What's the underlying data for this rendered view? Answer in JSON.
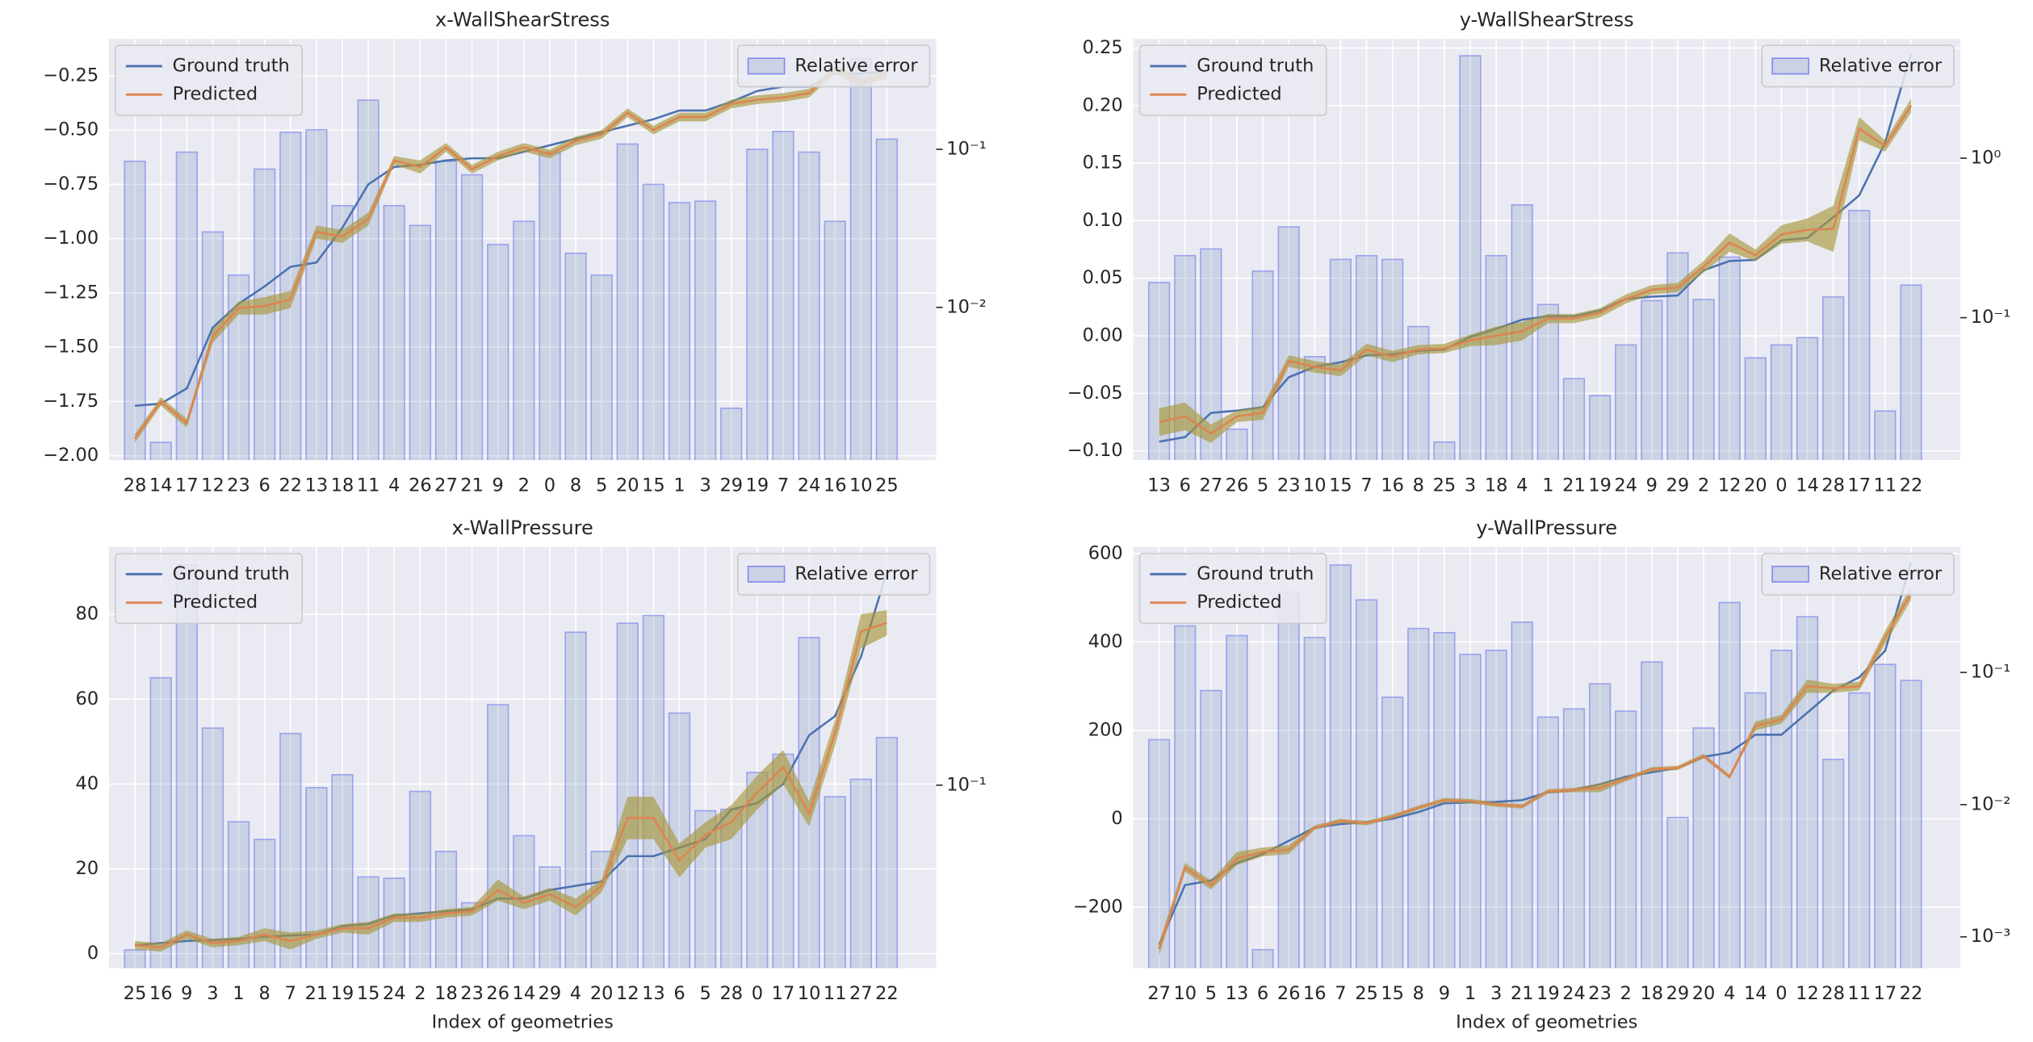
{
  "chart_data": [
    {
      "type": "combo",
      "title": "x-WallShearStress",
      "categories": [
        "28",
        "14",
        "17",
        "12",
        "23",
        "6",
        "22",
        "13",
        "18",
        "11",
        "4",
        "26",
        "27",
        "21",
        "9",
        "2",
        "0",
        "8",
        "5",
        "20",
        "15",
        "1",
        "3",
        "29",
        "19",
        "7",
        "24",
        "16",
        "10",
        "25"
      ],
      "series": [
        {
          "name": "Ground truth",
          "color": "#4c72b0",
          "values": [
            -1.77,
            -1.76,
            -1.69,
            -1.41,
            -1.3,
            -1.22,
            -1.13,
            -1.11,
            -0.95,
            -0.75,
            -0.67,
            -0.66,
            -0.64,
            -0.63,
            -0.63,
            -0.6,
            -0.57,
            -0.54,
            -0.51,
            -0.48,
            -0.45,
            -0.41,
            -0.41,
            -0.37,
            -0.32,
            -0.3,
            -0.3,
            -0.24,
            -0.24,
            -0.23
          ]
        },
        {
          "name": "Predicted",
          "color": "#dd8452",
          "spread_color": "#a8983a",
          "values": [
            -1.92,
            -1.75,
            -1.85,
            -1.45,
            -1.32,
            -1.31,
            -1.28,
            -0.97,
            -0.99,
            -0.91,
            -0.64,
            -0.67,
            -0.58,
            -0.68,
            -0.62,
            -0.58,
            -0.61,
            -0.55,
            -0.52,
            -0.42,
            -0.5,
            -0.44,
            -0.44,
            -0.38,
            -0.36,
            -0.35,
            -0.33,
            -0.22,
            -0.28,
            -0.24
          ],
          "spread": [
            0.02,
            0.02,
            0.02,
            0.03,
            0.03,
            0.04,
            0.04,
            0.03,
            0.03,
            0.03,
            0.02,
            0.03,
            0.02,
            0.02,
            0.02,
            0.02,
            0.02,
            0.02,
            0.02,
            0.02,
            0.02,
            0.02,
            0.02,
            0.02,
            0.02,
            0.02,
            0.02,
            0.02,
            0.02,
            0.02
          ]
        },
        {
          "name": "Relative error",
          "type": "bar",
          "axis": "y2",
          "color": "#4c72b0",
          "edge_color": "#7f88ee",
          "values": [
            0.084,
            0.0014,
            0.096,
            0.03,
            0.016,
            0.075,
            0.128,
            0.133,
            0.044,
            0.205,
            0.044,
            0.033,
            0.084,
            0.069,
            0.025,
            0.035,
            0.096,
            0.022,
            0.016,
            0.108,
            0.06,
            0.046,
            0.047,
            0.0023,
            0.1,
            0.13,
            0.096,
            0.035,
            0.375,
            0.116
          ]
        }
      ],
      "ylim": [
        -2.02,
        -0.08
      ],
      "yticks": [
        {
          "value": -2,
          "label": "−2.00"
        },
        {
          "value": -1.75,
          "label": "−1.75"
        },
        {
          "value": -1.5,
          "label": "−1.50"
        },
        {
          "value": -1.25,
          "label": "−1.25"
        },
        {
          "value": -1,
          "label": "−1.00"
        },
        {
          "value": -0.75,
          "label": "−0.75"
        },
        {
          "value": -0.5,
          "label": "−0.50"
        },
        {
          "value": -0.25,
          "label": "−0.25"
        }
      ],
      "y2lim": [
        0.00108,
        0.5
      ],
      "y2scale": "log",
      "y2ticks": [
        {
          "value": 0.01,
          "label": "10⁻²"
        },
        {
          "value": 0.1,
          "label": "10⁻¹"
        }
      ],
      "grid": true,
      "legend": "upper left",
      "legend2": "upper right"
    },
    {
      "type": "combo",
      "title": "y-WallShearStress",
      "categories": [
        "13",
        "6",
        "27",
        "26",
        "5",
        "23",
        "10",
        "15",
        "7",
        "16",
        "8",
        "25",
        "3",
        "18",
        "4",
        "1",
        "21",
        "19",
        "24",
        "9",
        "29",
        "2",
        "12",
        "20",
        "0",
        "14",
        "28",
        "17",
        "11",
        "22"
      ],
      "series": [
        {
          "name": "Ground truth",
          "color": "#4c72b0",
          "values": [
            -0.092,
            -0.088,
            -0.067,
            -0.065,
            -0.062,
            -0.036,
            -0.027,
            -0.023,
            -0.017,
            -0.016,
            -0.013,
            -0.012,
            -0.001,
            0.006,
            0.014,
            0.017,
            0.017,
            0.022,
            0.032,
            0.034,
            0.035,
            0.057,
            0.065,
            0.066,
            0.083,
            0.085,
            0.103,
            0.122,
            0.168,
            0.245
          ]
        },
        {
          "name": "Predicted",
          "color": "#dd8452",
          "spread_color": "#a8983a",
          "values": [
            -0.075,
            -0.07,
            -0.085,
            -0.07,
            -0.067,
            -0.022,
            -0.027,
            -0.03,
            -0.012,
            -0.018,
            -0.012,
            -0.011,
            -0.004,
            0.0,
            0.004,
            0.015,
            0.015,
            0.02,
            0.032,
            0.04,
            0.042,
            0.06,
            0.081,
            0.07,
            0.088,
            0.092,
            0.093,
            0.18,
            0.165,
            0.2
          ],
          "spread": [
            0.012,
            0.012,
            0.008,
            0.005,
            0.006,
            0.005,
            0.005,
            0.005,
            0.005,
            0.005,
            0.004,
            0.004,
            0.005,
            0.008,
            0.008,
            0.004,
            0.004,
            0.004,
            0.004,
            0.004,
            0.004,
            0.005,
            0.008,
            0.005,
            0.008,
            0.01,
            0.02,
            0.01,
            0.005,
            0.006
          ]
        },
        {
          "name": "Relative error",
          "type": "bar",
          "axis": "y2",
          "color": "#4c72b0",
          "edge_color": "#7f88ee",
          "values": [
            0.166,
            0.245,
            0.27,
            0.02,
            0.196,
            0.371,
            0.057,
            0.232,
            0.245,
            0.232,
            0.088,
            0.0166,
            4.39,
            0.245,
            0.51,
            0.121,
            0.0415,
            0.0325,
            0.0675,
            0.128,
            0.255,
            0.13,
            0.24,
            0.056,
            0.0675,
            0.075,
            0.135,
            0.47,
            0.026,
            0.16
          ]
        }
      ],
      "ylim": [
        -0.108,
        0.258
      ],
      "yticks": [
        {
          "value": -0.1,
          "label": "−0.10"
        },
        {
          "value": -0.05,
          "label": "−0.05"
        },
        {
          "value": 0,
          "label": "0.00"
        },
        0.05,
        {
          "value": 0.1,
          "label": "0.10"
        },
        0.15,
        {
          "value": 0.2,
          "label": "0.20"
        },
        0.25
      ],
      "y2lim": [
        0.0128,
        5.6
      ],
      "y2scale": "log",
      "y2ticks": [
        {
          "value": 0.1,
          "label": "10⁻¹"
        },
        {
          "value": 1,
          "label": "10⁰"
        }
      ],
      "grid": true,
      "legend": "upper left",
      "legend2": "upper right"
    },
    {
      "type": "combo",
      "title": "x-WallPressure",
      "xlabel": "Index of geometries",
      "categories": [
        "25",
        "16",
        "9",
        "3",
        "1",
        "8",
        "7",
        "21",
        "19",
        "15",
        "24",
        "2",
        "18",
        "23",
        "26",
        "14",
        "29",
        "4",
        "20",
        "12",
        "13",
        "6",
        "5",
        "28",
        "0",
        "17",
        "10",
        "11",
        "27",
        "22"
      ],
      "series": [
        {
          "name": "Ground truth",
          "color": "#4c72b0",
          "values": [
            2.0,
            2.5,
            3.0,
            3.2,
            3.5,
            4.0,
            4.3,
            4.5,
            6.5,
            7.0,
            9.0,
            9.5,
            10,
            10.5,
            13,
            13,
            15,
            16,
            17,
            23,
            23,
            25,
            27,
            34,
            35.5,
            40,
            51.5,
            56,
            70,
            90
          ]
        },
        {
          "name": "Predicted",
          "color": "#dd8452",
          "spread_color": "#a8983a",
          "values": [
            2.0,
            1.5,
            4.5,
            2.5,
            3.0,
            4.5,
            3.0,
            4.5,
            6.0,
            6.0,
            8.5,
            8.5,
            9.5,
            10,
            15,
            12,
            14,
            11,
            16,
            32,
            32,
            22,
            28,
            31,
            38,
            44,
            33,
            52,
            76,
            78
          ],
          "spread": [
            1,
            1,
            1,
            1,
            1,
            1.5,
            2,
            1,
            1,
            1.5,
            1,
            1,
            1,
            1,
            2.5,
            1.5,
            1.5,
            2,
            1.5,
            5,
            5,
            4,
            3,
            4,
            4,
            4,
            3,
            3,
            4,
            3
          ]
        },
        {
          "name": "Relative error",
          "type": "bar",
          "axis": "y2",
          "color": "#4c72b0",
          "edge_color": "#7f88ee",
          "values": [
            0.0258,
            0.242,
            0.612,
            0.16,
            0.074,
            0.064,
            0.153,
            0.098,
            0.109,
            0.047,
            0.0465,
            0.095,
            0.058,
            0.038,
            0.194,
            0.066,
            0.051,
            0.352,
            0.058,
            0.379,
            0.404,
            0.181,
            0.081,
            0.082,
            0.111,
            0.129,
            0.337,
            0.091,
            0.105,
            0.148
          ]
        }
      ],
      "ylim": [
        -3.4,
        95.9
      ],
      "yticks": [
        0,
        20,
        40,
        60,
        80
      ],
      "y2lim": [
        0.0222,
        0.71
      ],
      "y2scale": "log",
      "y2ticks": [
        {
          "value": 0.1,
          "label": "10⁻¹"
        }
      ],
      "grid": true,
      "legend": "upper left",
      "legend2": "upper right"
    },
    {
      "type": "combo",
      "title": "y-WallPressure",
      "xlabel": "Index of geometries",
      "categories": [
        "27",
        "10",
        "5",
        "13",
        "6",
        "26",
        "16",
        "7",
        "25",
        "15",
        "8",
        "9",
        "1",
        "3",
        "21",
        "19",
        "24",
        "23",
        "2",
        "18",
        "29",
        "20",
        "4",
        "14",
        "0",
        "12",
        "28",
        "11",
        "17",
        "22"
      ],
      "series": [
        {
          "name": "Ground truth",
          "color": "#4c72b0",
          "values": [
            -285,
            -150,
            -140,
            -100,
            -80,
            -50,
            -20,
            -12,
            -8,
            0,
            15,
            35,
            37,
            38,
            42,
            60,
            65,
            78,
            95,
            105,
            115,
            140,
            150,
            190,
            190,
            240,
            290,
            320,
            380,
            580
          ]
        },
        {
          "name": "Predicted",
          "color": "#dd8452",
          "spread_color": "#a8983a",
          "values": [
            -295,
            -110,
            -150,
            -90,
            -75,
            -70,
            -20,
            -5,
            -10,
            5,
            25,
            42,
            40,
            32,
            28,
            62,
            65,
            70,
            90,
            112,
            115,
            142,
            95,
            210,
            225,
            300,
            295,
            300,
            410,
            510
          ],
          "spread": [
            15,
            10,
            10,
            15,
            10,
            10,
            5,
            5,
            5,
            5,
            5,
            5,
            5,
            5,
            5,
            5,
            5,
            10,
            5,
            5,
            5,
            5,
            5,
            10,
            10,
            15,
            10,
            10,
            15,
            15
          ]
        },
        {
          "name": "Relative error",
          "type": "bar",
          "axis": "y2",
          "color": "#4c72b0",
          "edge_color": "#7f88ee",
          "values": [
            0.031,
            0.225,
            0.073,
            0.19,
            0.0008,
            0.405,
            0.184,
            0.65,
            0.354,
            0.065,
            0.215,
            0.2,
            0.137,
            0.147,
            0.24,
            0.046,
            0.053,
            0.082,
            0.051,
            0.12,
            0.008,
            0.038,
            0.338,
            0.07,
            0.147,
            0.264,
            0.022,
            0.07,
            0.115,
            0.087
          ]
        }
      ],
      "ylim": [
        -338,
        615
      ],
      "yticks": [
        {
          "value": -200,
          "label": "−200"
        },
        0,
        200,
        400,
        600
      ],
      "y2lim": [
        0.00058,
        0.89
      ],
      "y2scale": "log",
      "y2ticks": [
        {
          "value": 0.001,
          "label": "10⁻³"
        },
        {
          "value": 0.01,
          "label": "10⁻²"
        },
        {
          "value": 0.1,
          "label": "10⁻¹"
        }
      ],
      "grid": true,
      "legend": "upper left",
      "legend2": "upper right"
    }
  ]
}
